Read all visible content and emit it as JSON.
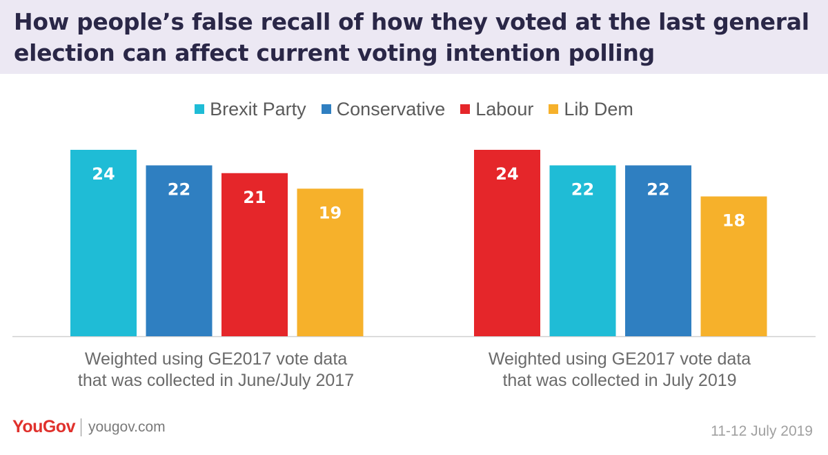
{
  "header": {
    "title": "How people’s false recall of how they voted at the last general election can affect current voting intention polling"
  },
  "colors": {
    "title_band": "#ece8f3",
    "Brexit Party": "#1fbcd6",
    "Conservative": "#2f7fc1",
    "Labour": "#e5262a",
    "Lib Dem": "#f6b12b"
  },
  "legend": [
    {
      "label": "Brexit Party",
      "color": "#1fbcd6"
    },
    {
      "label": "Conservative",
      "color": "#2f7fc1"
    },
    {
      "label": "Labour",
      "color": "#e5262a"
    },
    {
      "label": "Lib Dem",
      "color": "#f6b12b"
    }
  ],
  "chart_data": {
    "type": "bar",
    "ylim": [
      0,
      24
    ],
    "grid": false,
    "legend_position": "top",
    "groups": [
      {
        "label_lines": [
          "Weighted using GE2017 vote data",
          "that was collected in June/July 2017"
        ],
        "bars": [
          {
            "party": "Brexit Party",
            "value": 24
          },
          {
            "party": "Conservative",
            "value": 22
          },
          {
            "party": "Labour",
            "value": 21
          },
          {
            "party": "Lib Dem",
            "value": 19
          }
        ]
      },
      {
        "label_lines": [
          "Weighted using GE2017 vote data",
          "that was collected in July 2019"
        ],
        "bars": [
          {
            "party": "Labour",
            "value": 24
          },
          {
            "party": "Brexit Party",
            "value": 22
          },
          {
            "party": "Conservative",
            "value": 22
          },
          {
            "party": "Lib Dem",
            "value": 18
          }
        ]
      }
    ]
  },
  "footer": {
    "logo": "YouGov",
    "site": "yougov.com",
    "date": "11-12 July 2019"
  }
}
